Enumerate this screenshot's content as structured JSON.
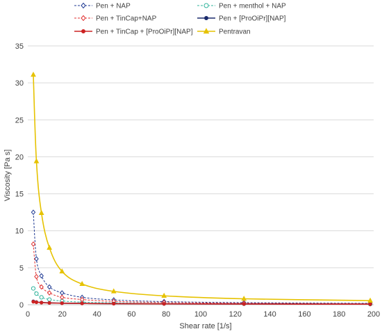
{
  "chart_data": {
    "type": "line",
    "xlabel": "Shear rate [1/s]",
    "ylabel": "Viscosity [Pa s]",
    "xlim": [
      0,
      200
    ],
    "ylim": [
      0,
      35
    ],
    "xticks": [
      0,
      20,
      40,
      60,
      80,
      100,
      120,
      140,
      160,
      180,
      200
    ],
    "yticks": [
      0,
      5,
      10,
      15,
      20,
      25,
      30,
      35
    ],
    "grid": "horizontal",
    "legend_position": "top",
    "series": [
      {
        "name": "Pen + NAP",
        "color": "#1f3a93",
        "style": "dashed",
        "marker": "diamond-open",
        "x": [
          3.2,
          5.0,
          7.9,
          12.5,
          19.8,
          31.4,
          49.7,
          78.8,
          125,
          198
        ],
        "y": [
          12.5,
          6.2,
          3.9,
          2.4,
          1.6,
          1.0,
          0.65,
          0.42,
          0.28,
          0.18
        ]
      },
      {
        "name": "Pen + menthol + NAP",
        "color": "#2fb39b",
        "style": "dashed",
        "marker": "circle-open",
        "x": [
          3.2,
          5.0,
          7.9,
          12.5,
          19.8,
          31.4,
          49.7,
          78.8,
          125,
          198
        ],
        "y": [
          2.2,
          1.5,
          1.0,
          0.7,
          0.5,
          0.35,
          0.25,
          0.17,
          0.12,
          0.08
        ]
      },
      {
        "name": "Pen + TinCap+NAP",
        "color": "#e03030",
        "style": "dashed",
        "marker": "diamond-open",
        "x": [
          3.2,
          5.0,
          7.9,
          12.5,
          19.8,
          31.4,
          49.7,
          78.8,
          125,
          198
        ],
        "y": [
          8.2,
          3.8,
          2.4,
          1.6,
          1.0,
          0.7,
          0.45,
          0.3,
          0.2,
          0.13
        ]
      },
      {
        "name": "Pen + [ProOiPr][NAP]",
        "color": "#1a2a6c",
        "style": "solid",
        "marker": "circle-filled",
        "x": [
          3.2,
          5.0,
          7.9,
          12.5,
          19.8,
          31.4,
          49.7,
          78.8,
          125,
          198
        ],
        "y": [
          0.45,
          0.36,
          0.3,
          0.25,
          0.21,
          0.18,
          0.15,
          0.12,
          0.1,
          0.08
        ]
      },
      {
        "name": "Pen + TinCap + [ProOiPr][NAP]",
        "color": "#cc2222",
        "style": "solid",
        "marker": "circle-filled",
        "x": [
          3.2,
          5.0,
          7.9,
          12.5,
          19.8,
          31.4,
          49.7,
          78.8,
          125,
          198
        ],
        "y": [
          0.4,
          0.33,
          0.28,
          0.24,
          0.2,
          0.17,
          0.14,
          0.11,
          0.09,
          0.07
        ]
      },
      {
        "name": "Pentravan",
        "color": "#e6c200",
        "style": "solid",
        "marker": "triangle-filled",
        "x": [
          3.2,
          5.0,
          7.9,
          12.5,
          19.8,
          31.4,
          49.7,
          78.8,
          125,
          198
        ],
        "y": [
          31.1,
          19.4,
          12.4,
          7.7,
          4.5,
          2.8,
          1.8,
          1.2,
          0.8,
          0.55
        ]
      }
    ]
  }
}
